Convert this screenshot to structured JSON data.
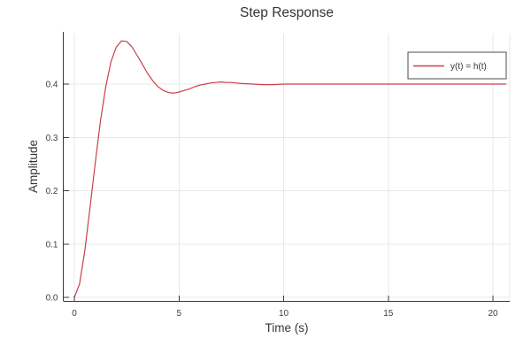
{
  "colors": {
    "line": "#c9404a",
    "grid": "#e8e8e8",
    "spine": "#383838",
    "text": "#363636",
    "background": "#ffffff",
    "legend_border": "#4d4d4d",
    "legend_background": "#ffffff"
  },
  "chart_data": {
    "type": "line",
    "title": "Step Response",
    "xlabel": "Time (s)",
    "ylabel": "Amplitude",
    "xlim": [
      0,
      20.8
    ],
    "ylim": [
      0,
      0.5
    ],
    "grid": true,
    "xticks": {
      "values": [
        0,
        5,
        10,
        15,
        20
      ],
      "labels": [
        "0",
        "5",
        "10",
        "15",
        "20"
      ]
    },
    "yticks": {
      "values": [
        0.0,
        0.1,
        0.2,
        0.3,
        0.4
      ],
      "labels": [
        "0.0",
        "0.1",
        "0.2",
        "0.3",
        "0.4"
      ]
    },
    "legend": {
      "position": "top-right",
      "entries": [
        {
          "label": "y(t) = h(t)",
          "color": "#c9404a"
        }
      ]
    },
    "series": [
      {
        "name": "y(t) = h(t)",
        "color": "#c9404a",
        "x": [
          0,
          0.25,
          0.5,
          0.75,
          1.0,
          1.25,
          1.5,
          1.75,
          2.0,
          2.25,
          2.5,
          2.75,
          3.0,
          3.25,
          3.5,
          3.75,
          4.0,
          4.25,
          4.5,
          4.75,
          5.0,
          5.25,
          5.5,
          5.75,
          6.0,
          6.25,
          6.5,
          6.75,
          7.0,
          7.25,
          7.5,
          7.75,
          8.0,
          8.5,
          9.0,
          9.5,
          10.0,
          10.5,
          11.0,
          12.0,
          13.0,
          14.0,
          15.0,
          16.0,
          17.0,
          18.0,
          19.0,
          20.0
        ],
        "y": [
          0.0,
          0.025,
          0.087,
          0.168,
          0.253,
          0.332,
          0.395,
          0.442,
          0.469,
          0.481,
          0.48,
          0.47,
          0.454,
          0.437,
          0.42,
          0.406,
          0.395,
          0.388,
          0.384,
          0.383,
          0.385,
          0.388,
          0.391,
          0.395,
          0.398,
          0.4,
          0.402,
          0.403,
          0.404,
          0.403,
          0.403,
          0.402,
          0.401,
          0.4,
          0.399,
          0.399,
          0.4,
          0.4,
          0.4,
          0.4,
          0.4,
          0.4,
          0.4,
          0.4,
          0.4,
          0.4,
          0.4,
          0.4
        ]
      }
    ],
    "steady_state_value": 0.4,
    "peak_value": 0.481,
    "peak_time": 2.3
  }
}
